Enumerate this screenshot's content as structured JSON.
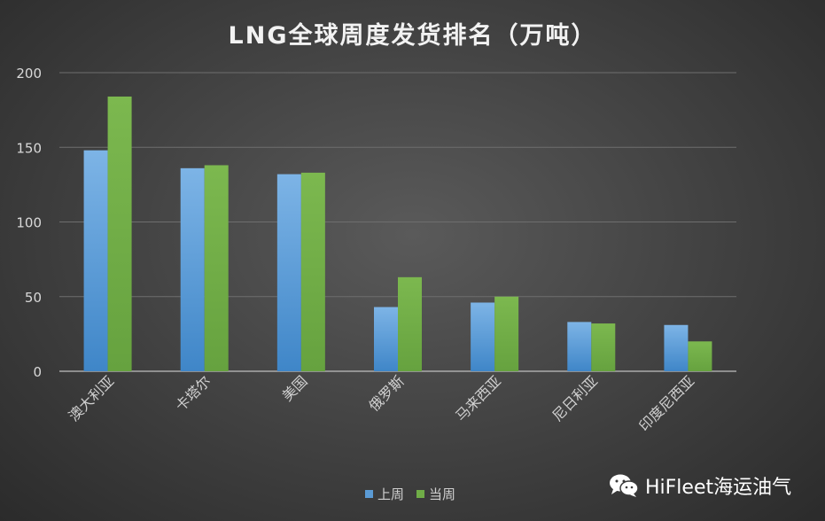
{
  "chart_data": {
    "type": "bar",
    "title": "LNG全球周度发货排名（万吨）",
    "categories": [
      "澳大利亚",
      "卡塔尔",
      "美国",
      "俄罗斯",
      "马来西亚",
      "尼日利亚",
      "印度尼西亚"
    ],
    "series": [
      {
        "name": "上周",
        "values": [
          148,
          136,
          132,
          43,
          46,
          33,
          31
        ],
        "color": "#5b9bd5"
      },
      {
        "name": "当周",
        "values": [
          184,
          138,
          133,
          63,
          50,
          32,
          20
        ],
        "color": "#70ad47"
      }
    ],
    "ylim": [
      0,
      200
    ],
    "yticks": [
      0,
      50,
      100,
      150,
      200
    ],
    "grid": true,
    "legend_position": "bottom"
  },
  "watermark": {
    "text": "HiFleet海运油气",
    "icon": "wechat-icon"
  }
}
